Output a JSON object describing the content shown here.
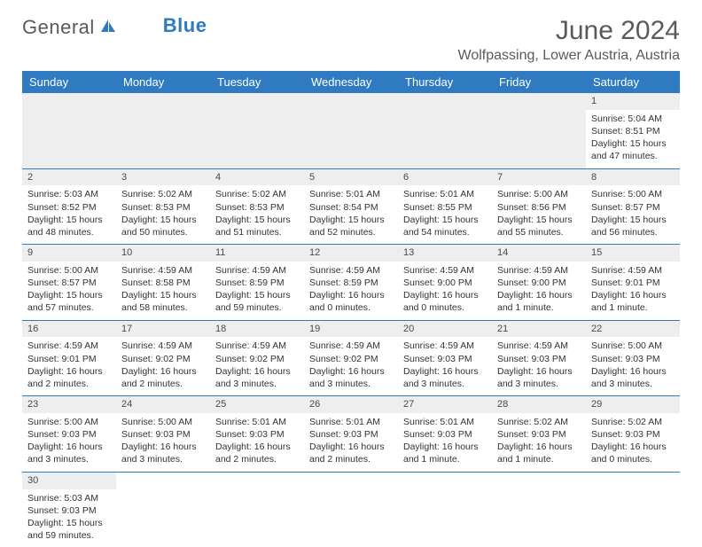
{
  "logo": {
    "general": "General",
    "blue": "Blue"
  },
  "title": "June 2024",
  "location": "Wolfpassing, Lower Austria, Austria",
  "colors": {
    "header_bg": "#2f7ac0",
    "header_text": "#ffffff",
    "daynum_bg": "#eeeeee",
    "border": "#2f7ac0",
    "text": "#333333",
    "title_text": "#5a5a5a"
  },
  "weekdays": [
    "Sunday",
    "Monday",
    "Tuesday",
    "Wednesday",
    "Thursday",
    "Friday",
    "Saturday"
  ],
  "weeks": [
    [
      null,
      null,
      null,
      null,
      null,
      null,
      {
        "n": "1",
        "sr": "Sunrise: 5:04 AM",
        "ss": "Sunset: 8:51 PM",
        "dl": "Daylight: 15 hours and 47 minutes."
      }
    ],
    [
      {
        "n": "2",
        "sr": "Sunrise: 5:03 AM",
        "ss": "Sunset: 8:52 PM",
        "dl": "Daylight: 15 hours and 48 minutes."
      },
      {
        "n": "3",
        "sr": "Sunrise: 5:02 AM",
        "ss": "Sunset: 8:53 PM",
        "dl": "Daylight: 15 hours and 50 minutes."
      },
      {
        "n": "4",
        "sr": "Sunrise: 5:02 AM",
        "ss": "Sunset: 8:53 PM",
        "dl": "Daylight: 15 hours and 51 minutes."
      },
      {
        "n": "5",
        "sr": "Sunrise: 5:01 AM",
        "ss": "Sunset: 8:54 PM",
        "dl": "Daylight: 15 hours and 52 minutes."
      },
      {
        "n": "6",
        "sr": "Sunrise: 5:01 AM",
        "ss": "Sunset: 8:55 PM",
        "dl": "Daylight: 15 hours and 54 minutes."
      },
      {
        "n": "7",
        "sr": "Sunrise: 5:00 AM",
        "ss": "Sunset: 8:56 PM",
        "dl": "Daylight: 15 hours and 55 minutes."
      },
      {
        "n": "8",
        "sr": "Sunrise: 5:00 AM",
        "ss": "Sunset: 8:57 PM",
        "dl": "Daylight: 15 hours and 56 minutes."
      }
    ],
    [
      {
        "n": "9",
        "sr": "Sunrise: 5:00 AM",
        "ss": "Sunset: 8:57 PM",
        "dl": "Daylight: 15 hours and 57 minutes."
      },
      {
        "n": "10",
        "sr": "Sunrise: 4:59 AM",
        "ss": "Sunset: 8:58 PM",
        "dl": "Daylight: 15 hours and 58 minutes."
      },
      {
        "n": "11",
        "sr": "Sunrise: 4:59 AM",
        "ss": "Sunset: 8:59 PM",
        "dl": "Daylight: 15 hours and 59 minutes."
      },
      {
        "n": "12",
        "sr": "Sunrise: 4:59 AM",
        "ss": "Sunset: 8:59 PM",
        "dl": "Daylight: 16 hours and 0 minutes."
      },
      {
        "n": "13",
        "sr": "Sunrise: 4:59 AM",
        "ss": "Sunset: 9:00 PM",
        "dl": "Daylight: 16 hours and 0 minutes."
      },
      {
        "n": "14",
        "sr": "Sunrise: 4:59 AM",
        "ss": "Sunset: 9:00 PM",
        "dl": "Daylight: 16 hours and 1 minute."
      },
      {
        "n": "15",
        "sr": "Sunrise: 4:59 AM",
        "ss": "Sunset: 9:01 PM",
        "dl": "Daylight: 16 hours and 1 minute."
      }
    ],
    [
      {
        "n": "16",
        "sr": "Sunrise: 4:59 AM",
        "ss": "Sunset: 9:01 PM",
        "dl": "Daylight: 16 hours and 2 minutes."
      },
      {
        "n": "17",
        "sr": "Sunrise: 4:59 AM",
        "ss": "Sunset: 9:02 PM",
        "dl": "Daylight: 16 hours and 2 minutes."
      },
      {
        "n": "18",
        "sr": "Sunrise: 4:59 AM",
        "ss": "Sunset: 9:02 PM",
        "dl": "Daylight: 16 hours and 3 minutes."
      },
      {
        "n": "19",
        "sr": "Sunrise: 4:59 AM",
        "ss": "Sunset: 9:02 PM",
        "dl": "Daylight: 16 hours and 3 minutes."
      },
      {
        "n": "20",
        "sr": "Sunrise: 4:59 AM",
        "ss": "Sunset: 9:03 PM",
        "dl": "Daylight: 16 hours and 3 minutes."
      },
      {
        "n": "21",
        "sr": "Sunrise: 4:59 AM",
        "ss": "Sunset: 9:03 PM",
        "dl": "Daylight: 16 hours and 3 minutes."
      },
      {
        "n": "22",
        "sr": "Sunrise: 5:00 AM",
        "ss": "Sunset: 9:03 PM",
        "dl": "Daylight: 16 hours and 3 minutes."
      }
    ],
    [
      {
        "n": "23",
        "sr": "Sunrise: 5:00 AM",
        "ss": "Sunset: 9:03 PM",
        "dl": "Daylight: 16 hours and 3 minutes."
      },
      {
        "n": "24",
        "sr": "Sunrise: 5:00 AM",
        "ss": "Sunset: 9:03 PM",
        "dl": "Daylight: 16 hours and 3 minutes."
      },
      {
        "n": "25",
        "sr": "Sunrise: 5:01 AM",
        "ss": "Sunset: 9:03 PM",
        "dl": "Daylight: 16 hours and 2 minutes."
      },
      {
        "n": "26",
        "sr": "Sunrise: 5:01 AM",
        "ss": "Sunset: 9:03 PM",
        "dl": "Daylight: 16 hours and 2 minutes."
      },
      {
        "n": "27",
        "sr": "Sunrise: 5:01 AM",
        "ss": "Sunset: 9:03 PM",
        "dl": "Daylight: 16 hours and 1 minute."
      },
      {
        "n": "28",
        "sr": "Sunrise: 5:02 AM",
        "ss": "Sunset: 9:03 PM",
        "dl": "Daylight: 16 hours and 1 minute."
      },
      {
        "n": "29",
        "sr": "Sunrise: 5:02 AM",
        "ss": "Sunset: 9:03 PM",
        "dl": "Daylight: 16 hours and 0 minutes."
      }
    ],
    [
      {
        "n": "30",
        "sr": "Sunrise: 5:03 AM",
        "ss": "Sunset: 9:03 PM",
        "dl": "Daylight: 15 hours and 59 minutes."
      },
      null,
      null,
      null,
      null,
      null,
      null
    ]
  ]
}
